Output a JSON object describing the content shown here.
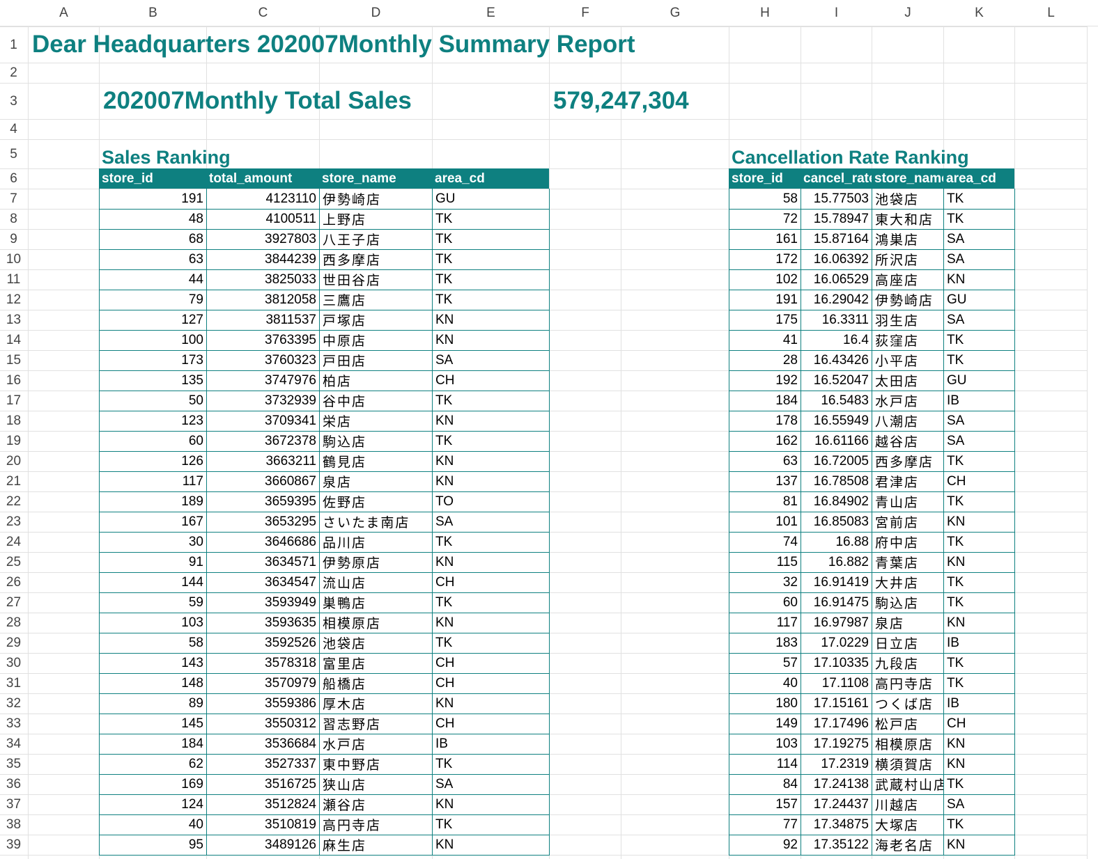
{
  "sheet": {
    "column_headers": [
      "A",
      "B",
      "C",
      "D",
      "E",
      "F",
      "G",
      "H",
      "I",
      "J",
      "K",
      "L"
    ],
    "row_headers": [
      1,
      2,
      3,
      4,
      5,
      6,
      7,
      8,
      9,
      10,
      11,
      12,
      13,
      14,
      15,
      16,
      17,
      18,
      19,
      20,
      21,
      22,
      23,
      24,
      25,
      26,
      27,
      28,
      29,
      30,
      31,
      32,
      33,
      34,
      35,
      36,
      37,
      38,
      39
    ]
  },
  "report": {
    "title": "Dear Headquarters 202007Monthly Summary Report",
    "total_label": "202007Monthly Total Sales",
    "total_value": "579,247,304"
  },
  "sales_ranking": {
    "title": "Sales Ranking",
    "columns": [
      "store_id",
      "total_amount",
      "store_name",
      "area_cd"
    ],
    "rows": [
      [
        191,
        4123110,
        "伊勢崎店",
        "GU"
      ],
      [
        48,
        4100511,
        "上野店",
        "TK"
      ],
      [
        68,
        3927803,
        "八王子店",
        "TK"
      ],
      [
        63,
        3844239,
        "西多摩店",
        "TK"
      ],
      [
        44,
        3825033,
        "世田谷店",
        "TK"
      ],
      [
        79,
        3812058,
        "三鷹店",
        "TK"
      ],
      [
        127,
        3811537,
        "戸塚店",
        "KN"
      ],
      [
        100,
        3763395,
        "中原店",
        "KN"
      ],
      [
        173,
        3760323,
        "戸田店",
        "SA"
      ],
      [
        135,
        3747976,
        "柏店",
        "CH"
      ],
      [
        50,
        3732939,
        "谷中店",
        "TK"
      ],
      [
        123,
        3709341,
        "栄店",
        "KN"
      ],
      [
        60,
        3672378,
        "駒込店",
        "TK"
      ],
      [
        126,
        3663211,
        "鶴見店",
        "KN"
      ],
      [
        117,
        3660867,
        "泉店",
        "KN"
      ],
      [
        189,
        3659395,
        "佐野店",
        "TO"
      ],
      [
        167,
        3653295,
        "さいたま南店",
        "SA"
      ],
      [
        30,
        3646686,
        "品川店",
        "TK"
      ],
      [
        91,
        3634571,
        "伊勢原店",
        "KN"
      ],
      [
        144,
        3634547,
        "流山店",
        "CH"
      ],
      [
        59,
        3593949,
        "巣鴨店",
        "TK"
      ],
      [
        103,
        3593635,
        "相模原店",
        "KN"
      ],
      [
        58,
        3592526,
        "池袋店",
        "TK"
      ],
      [
        143,
        3578318,
        "富里店",
        "CH"
      ],
      [
        148,
        3570979,
        "船橋店",
        "CH"
      ],
      [
        89,
        3559386,
        "厚木店",
        "KN"
      ],
      [
        145,
        3550312,
        "習志野店",
        "CH"
      ],
      [
        184,
        3536684,
        "水戸店",
        "IB"
      ],
      [
        62,
        3527337,
        "東中野店",
        "TK"
      ],
      [
        169,
        3516725,
        "狭山店",
        "SA"
      ],
      [
        124,
        3512824,
        "瀬谷店",
        "KN"
      ],
      [
        40,
        3510819,
        "高円寺店",
        "TK"
      ],
      [
        95,
        3489126,
        "麻生店",
        "KN"
      ]
    ]
  },
  "cancellation_ranking": {
    "title": "Cancellation Rate Ranking",
    "columns": [
      "store_id",
      "cancel_rate",
      "store_name",
      "area_cd"
    ],
    "rows": [
      [
        58,
        15.77503,
        "池袋店",
        "TK"
      ],
      [
        72,
        15.78947,
        "東大和店",
        "TK"
      ],
      [
        161,
        15.87164,
        "鴻巣店",
        "SA"
      ],
      [
        172,
        16.06392,
        "所沢店",
        "SA"
      ],
      [
        102,
        16.06529,
        "高座店",
        "KN"
      ],
      [
        191,
        16.29042,
        "伊勢崎店",
        "GU"
      ],
      [
        175,
        16.3311,
        "羽生店",
        "SA"
      ],
      [
        41,
        16.4,
        "荻窪店",
        "TK"
      ],
      [
        28,
        16.43426,
        "小平店",
        "TK"
      ],
      [
        192,
        16.52047,
        "太田店",
        "GU"
      ],
      [
        184,
        16.5483,
        "水戸店",
        "IB"
      ],
      [
        178,
        16.55949,
        "八潮店",
        "SA"
      ],
      [
        162,
        16.61166,
        "越谷店",
        "SA"
      ],
      [
        63,
        16.72005,
        "西多摩店",
        "TK"
      ],
      [
        137,
        16.78508,
        "君津店",
        "CH"
      ],
      [
        81,
        16.84902,
        "青山店",
        "TK"
      ],
      [
        101,
        16.85083,
        "宮前店",
        "KN"
      ],
      [
        74,
        16.88,
        "府中店",
        "TK"
      ],
      [
        115,
        16.882,
        "青葉店",
        "KN"
      ],
      [
        32,
        16.91419,
        "大井店",
        "TK"
      ],
      [
        60,
        16.91475,
        "駒込店",
        "TK"
      ],
      [
        117,
        16.97987,
        "泉店",
        "KN"
      ],
      [
        183,
        17.0229,
        "日立店",
        "IB"
      ],
      [
        57,
        17.10335,
        "九段店",
        "TK"
      ],
      [
        40,
        17.1108,
        "高円寺店",
        "TK"
      ],
      [
        180,
        17.15161,
        "つくば店",
        "IB"
      ],
      [
        149,
        17.17496,
        "松戸店",
        "CH"
      ],
      [
        103,
        17.19275,
        "相模原店",
        "KN"
      ],
      [
        114,
        17.2319,
        "横須賀店",
        "KN"
      ],
      [
        84,
        17.24138,
        "武蔵村山店",
        "TK"
      ],
      [
        157,
        17.24437,
        "川越店",
        "SA"
      ],
      [
        77,
        17.34875,
        "大塚店",
        "TK"
      ],
      [
        92,
        17.35122,
        "海老名店",
        "KN"
      ]
    ]
  }
}
